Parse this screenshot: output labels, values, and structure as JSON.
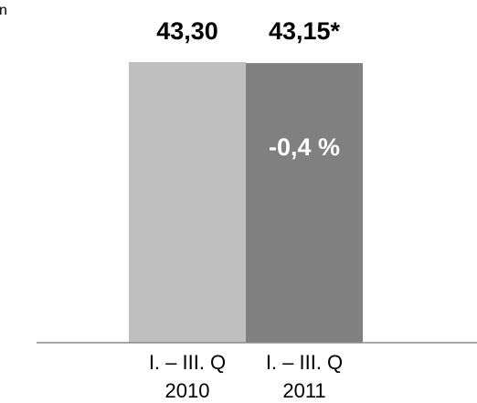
{
  "chart_data": {
    "type": "bar",
    "unit_fragment": "n",
    "categories": [
      [
        "I. – III. Q",
        "2010"
      ],
      [
        "I. – III. Q",
        "2011"
      ]
    ],
    "values": [
      43.3,
      43.15
    ],
    "value_labels": [
      "43,30",
      "43,15*"
    ],
    "annotations": [
      {
        "text": "-0,4 %",
        "bar_index": 1
      }
    ],
    "colors": [
      "#bfbfbf",
      "#808080"
    ],
    "axis_color": "#8c8c8c",
    "ylim": [
      0,
      43.3
    ],
    "grid": false,
    "legend": "none",
    "title": "",
    "xlabel": "",
    "ylabel": ""
  }
}
